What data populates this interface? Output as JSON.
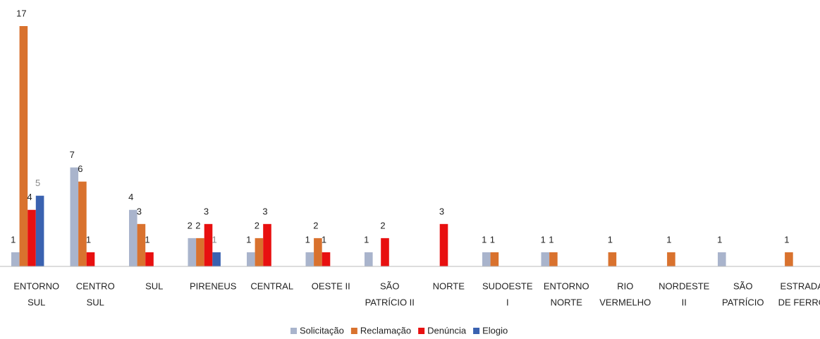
{
  "chart_data": {
    "type": "bar",
    "categories": [
      [
        "ENTORNO",
        "SUL"
      ],
      [
        "CENTRO",
        "SUL"
      ],
      [
        "SUL"
      ],
      [
        "PIRENEUS"
      ],
      [
        "CENTRAL"
      ],
      [
        "OESTE II"
      ],
      [
        "SÃO",
        "PATRÍCIO II"
      ],
      [
        "NORTE"
      ],
      [
        "SUDOESTE",
        "I"
      ],
      [
        "ENTORNO",
        "NORTE"
      ],
      [
        "RIO",
        "VERMELHO"
      ],
      [
        "NORDESTE",
        "II"
      ],
      [
        "SÃO",
        "PATRÍCIO"
      ],
      [
        "ESTRADA",
        "DE FERRO"
      ]
    ],
    "series": [
      {
        "name": "Solicitação",
        "color": "#a9b4cc",
        "values": [
          1,
          7,
          4,
          2,
          1,
          1,
          1,
          null,
          1,
          1,
          null,
          null,
          1,
          null
        ]
      },
      {
        "name": "Reclamação",
        "color": "#d9722e",
        "values": [
          17,
          6,
          3,
          2,
          2,
          2,
          null,
          null,
          1,
          1,
          1,
          1,
          null,
          1
        ]
      },
      {
        "name": "Denúncia",
        "color": "#e81010",
        "values": [
          4,
          1,
          1,
          3,
          3,
          1,
          2,
          3,
          null,
          null,
          null,
          null,
          null,
          null
        ]
      },
      {
        "name": "Elogio",
        "color": "#3a62b0",
        "values": [
          5,
          null,
          null,
          1,
          null,
          null,
          null,
          null,
          null,
          null,
          null,
          null,
          null,
          null
        ]
      }
    ],
    "legend": "bottom"
  }
}
